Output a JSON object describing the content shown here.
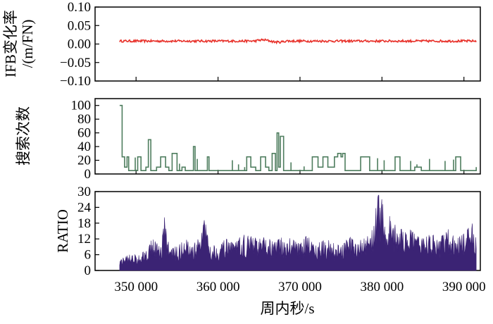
{
  "chart_data": [
    {
      "type": "line",
      "ylabel": "IFB变化率\n/(m/FN)",
      "xlim": [
        345000,
        392000
      ],
      "ylim": [
        -0.1,
        0.1
      ],
      "yticks": [
        -0.1,
        -0.05,
        0.0,
        0.05,
        0.1
      ],
      "ytick_labels": [
        "−0.10",
        "−0.05",
        "0.00",
        "0.05",
        "0.10"
      ],
      "xticks": [
        350000,
        360000,
        370000,
        380000,
        390000
      ],
      "grid": false,
      "color": "#e8322b",
      "series": [
        {
          "x": [
            348000,
            391500
          ],
          "y_mean": 0.008,
          "y_min": 0.0,
          "y_max": 0.016
        }
      ]
    },
    {
      "type": "line",
      "ylabel": "搜索次数",
      "xlim": [
        345000,
        392000
      ],
      "ylim": [
        0,
        110
      ],
      "yticks": [
        0,
        20,
        40,
        60,
        80,
        100
      ],
      "ytick_labels": [
        "0",
        "20",
        "40",
        "60",
        "80",
        "100"
      ],
      "xticks": [
        350000,
        360000,
        370000,
        380000,
        390000
      ],
      "grid": false,
      "color": "#4e7d5e",
      "series": [
        {
          "x": [
            348000,
            348050,
            348300,
            348600,
            348900,
            349100,
            349600,
            350200,
            350600,
            351200,
            351500,
            351800,
            352100,
            352500,
            353000,
            353600,
            354000,
            354400,
            355000,
            355600,
            356000,
            356800,
            357000,
            357200,
            358000,
            358700,
            358900,
            359300,
            359700,
            360000,
            361000,
            362000,
            363000,
            363500,
            364000,
            364600,
            365200,
            365800,
            366200,
            366600,
            367000,
            367200,
            367400,
            367600,
            368000,
            368600,
            369200,
            370000,
            371000,
            371500,
            372200,
            372800,
            373400,
            374200,
            374600,
            375000,
            375200,
            375500,
            376000,
            376600,
            377400,
            378500,
            379200,
            380000,
            380800,
            381300,
            381600,
            382200,
            383000,
            384000,
            384800,
            385500,
            386400,
            387200,
            388200,
            389000,
            389600,
            390000,
            390500,
            391200,
            391500
          ],
          "y": [
            100,
            100,
            25,
            10,
            25,
            5,
            5,
            25,
            5,
            10,
            50,
            5,
            5,
            10,
            25,
            10,
            5,
            30,
            5,
            10,
            5,
            5,
            40,
            5,
            5,
            25,
            5,
            5,
            5,
            5,
            5,
            5,
            5,
            25,
            10,
            5,
            25,
            10,
            5,
            30,
            5,
            60,
            10,
            55,
            5,
            5,
            5,
            5,
            5,
            25,
            10,
            25,
            10,
            25,
            30,
            25,
            30,
            5,
            5,
            5,
            25,
            5,
            5,
            5,
            5,
            5,
            25,
            5,
            5,
            10,
            5,
            5,
            5,
            5,
            5,
            25,
            5,
            5,
            5,
            5,
            10
          ]
        }
      ]
    },
    {
      "type": "bar",
      "ylabel": "RATIO",
      "xlim": [
        345000,
        392000
      ],
      "ylim": [
        0,
        30
      ],
      "yticks": [
        0,
        6,
        12,
        18,
        24,
        30
      ],
      "ytick_labels": [
        "0",
        "6",
        "12",
        "18",
        "24",
        "30"
      ],
      "xticks": [
        350000,
        360000,
        370000,
        380000,
        390000
      ],
      "xtick_labels": [
        "350 000",
        "360 000",
        "370 000",
        "380 000",
        "390 000"
      ],
      "xlabel": "周内秒/s",
      "grid": false,
      "color": "#3b2374",
      "series": [
        {
          "x": [
            348000,
            349000,
            350000,
            351000,
            352000,
            353000,
            353500,
            354000,
            355000,
            356000,
            357000,
            358000,
            358500,
            359000,
            360000,
            361000,
            362000,
            363000,
            364000,
            365000,
            366000,
            367000,
            368000,
            369000,
            370000,
            371000,
            372000,
            373000,
            374000,
            375000,
            376000,
            377000,
            378000,
            379000,
            379500,
            380000,
            380500,
            381000,
            382000,
            383000,
            384000,
            385000,
            386000,
            387000,
            388000,
            389000,
            390000,
            391000,
            391500
          ],
          "y": [
            4,
            6,
            6,
            8,
            12,
            9,
            22,
            10,
            9,
            12,
            10,
            14,
            22,
            11,
            10,
            12,
            10,
            14,
            13,
            12,
            13,
            11,
            13,
            12,
            10,
            14,
            10,
            12,
            11,
            9,
            13,
            10,
            14,
            18,
            29,
            27,
            18,
            21,
            15,
            17,
            14,
            12,
            14,
            12,
            16,
            12,
            14,
            18,
            14
          ]
        }
      ]
    }
  ]
}
